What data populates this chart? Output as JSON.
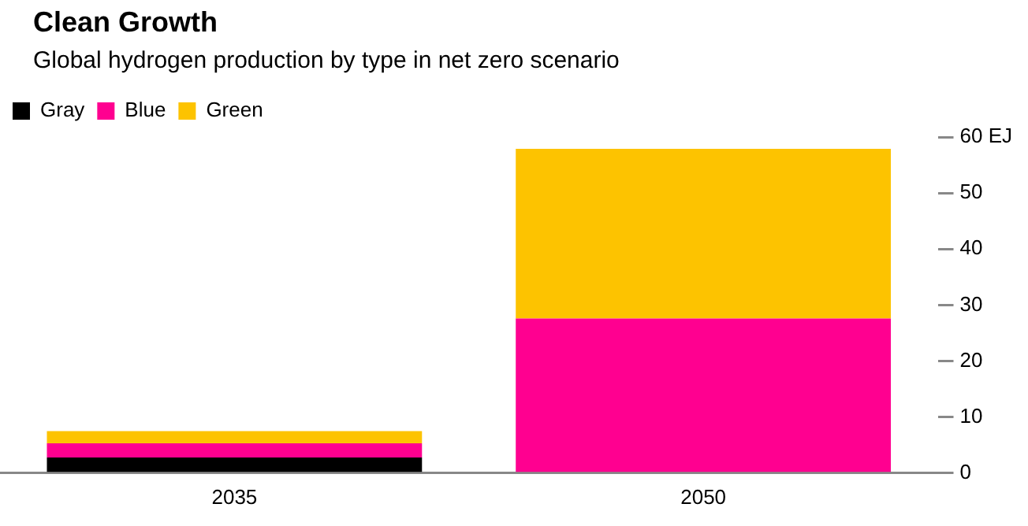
{
  "chart_data": {
    "type": "bar",
    "title": "Clean Growth",
    "subtitle": "Global hydrogen production by type in net zero scenario",
    "categories": [
      "2035",
      "2050"
    ],
    "stacked": true,
    "legend": "top left",
    "grid": false,
    "series": [
      {
        "name": "Gray",
        "color": "#000000",
        "values": [
          2.8,
          0
        ]
      },
      {
        "name": "Blue",
        "color": "#ff0090",
        "values": [
          2.5,
          27.6
        ]
      },
      {
        "name": "Green",
        "color": "#fdc300",
        "values": [
          2.2,
          30.3
        ]
      }
    ],
    "ylim": [
      0,
      60
    ],
    "yticks": [
      0,
      10,
      20,
      30,
      40,
      50,
      {
        "value": 60,
        "label": "60 EJ"
      }
    ]
  }
}
